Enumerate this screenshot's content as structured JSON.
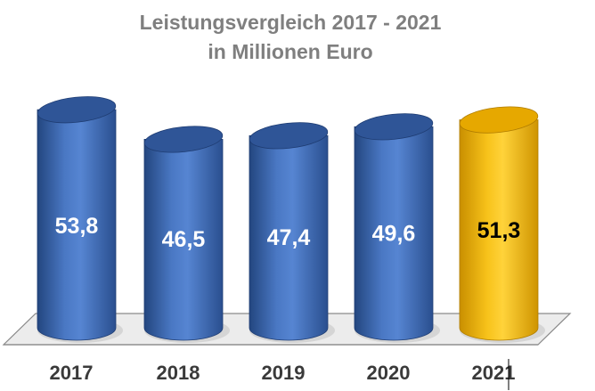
{
  "chart_data": {
    "type": "bar",
    "title": "Leistungsvergleich 2017 - 2021",
    "subtitle": "in Millionen Euro",
    "categories": [
      "2017",
      "2018",
      "2019",
      "2020",
      "2021"
    ],
    "values": [
      53.8,
      46.5,
      47.4,
      49.6,
      51.3
    ],
    "value_labels": [
      "53,8",
      "46,5",
      "47,4",
      "49,6",
      "51,3"
    ],
    "bar_style": "3d-cylinder",
    "grid": false,
    "legend": "none",
    "colors": {
      "default_bar": "#3f6bb3",
      "highlight_bar": "#f2b705",
      "label_on_default": "#ffffff",
      "label_on_highlight": "#000000",
      "floor": "#ececec",
      "floor_edge": "#8a8a8a"
    },
    "highlight_index": 4
  }
}
